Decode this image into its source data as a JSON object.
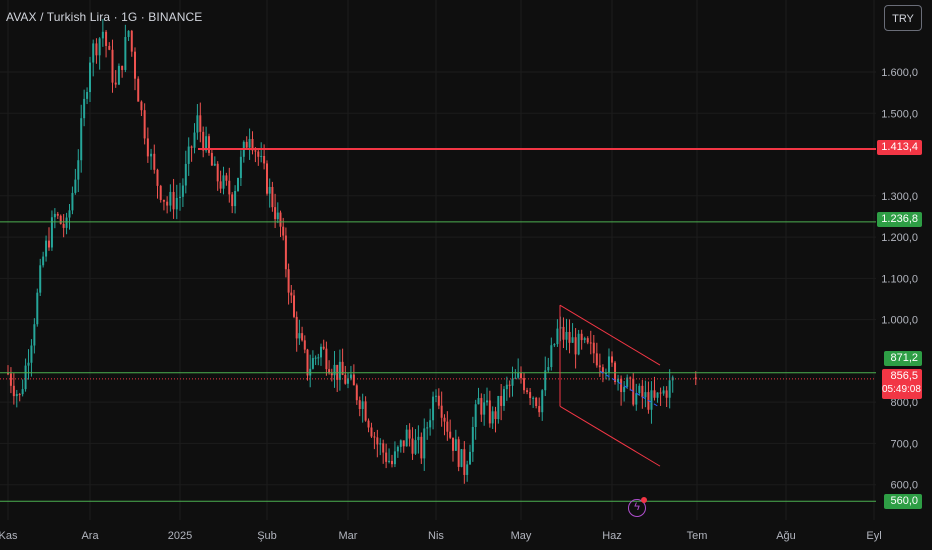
{
  "header": {
    "title": "AVAX / Turkish Lira · 1G · BINANCE",
    "currency_button": "TRY"
  },
  "colors": {
    "bull": "#26a69a",
    "bear": "#ef5350",
    "resistance_line": "#f23645",
    "support_line": "#4caf50",
    "grid": "#1c1c1c",
    "background": "#0f0f0f"
  },
  "tags": {
    "resistance": "1.413,4",
    "mid_support": "1.236,8",
    "last_close": "871,2",
    "current_price": "856,5",
    "countdown": "05:49:08",
    "bottom_support": "560,0"
  },
  "chart_data": {
    "type": "candlestick",
    "title": "AVAX / Turkish Lira · 1G · BINANCE",
    "y_axis_ticks": [
      {
        "value": 1600,
        "label": "1.600,0"
      },
      {
        "value": 1500,
        "label": "1.500,0"
      },
      {
        "value": 1300,
        "label": "1.300,0"
      },
      {
        "value": 1200,
        "label": "1.200,0"
      },
      {
        "value": 1100,
        "label": "1.100,0"
      },
      {
        "value": 1000,
        "label": "1.000,0"
      },
      {
        "value": 800,
        "label": "800,0"
      },
      {
        "value": 700,
        "label": "700,0"
      },
      {
        "value": 600,
        "label": "600,0"
      }
    ],
    "x_axis_ticks": [
      "Kas",
      "Ara",
      "2025",
      "Şub",
      "Mar",
      "Nis",
      "May",
      "Haz",
      "Tem",
      "Ağu",
      "Eyl"
    ],
    "horizontal_levels": [
      {
        "value": 1413.4,
        "color": "#f23645"
      },
      {
        "value": 1236.8,
        "color": "#4caf50"
      },
      {
        "value": 871.2,
        "color": "#4caf50"
      },
      {
        "value": 560.0,
        "color": "#4caf50"
      }
    ],
    "current_price": 856.5,
    "price_points": [
      [
        "Kas",
        870
      ],
      [
        "Kas",
        810
      ],
      [
        "Kas",
        960
      ],
      [
        "Kas",
        1150
      ],
      [
        "Kas",
        1250
      ],
      [
        "Kas",
        1220
      ],
      [
        "Kas",
        1400
      ],
      [
        "Ara",
        1640
      ],
      [
        "Ara",
        1700
      ],
      [
        "Ara",
        1560
      ],
      [
        "Ara",
        1700
      ],
      [
        "Ara",
        1500
      ],
      [
        "Ara",
        1350
      ],
      [
        "Ara",
        1280
      ],
      [
        "2025",
        1300
      ],
      [
        "2025",
        1480
      ],
      [
        "2025",
        1350
      ],
      [
        "2025",
        1300
      ],
      [
        "2025",
        1460
      ],
      [
        "Şub",
        1330
      ],
      [
        "Şub",
        1220
      ],
      [
        "Şub",
        1000
      ],
      [
        "Şub",
        880
      ],
      [
        "Şub",
        930
      ],
      [
        "Şub",
        880
      ],
      [
        "Mar",
        850
      ],
      [
        "Mar",
        800
      ],
      [
        "Mar",
        700
      ],
      [
        "Mar",
        650
      ],
      [
        "Mar",
        720
      ],
      [
        "Mar",
        680
      ],
      [
        "Nis",
        840
      ],
      [
        "Nis",
        720
      ],
      [
        "Nis",
        640
      ],
      [
        "Nis",
        800
      ],
      [
        "Nis",
        760
      ],
      [
        "Nis",
        830
      ],
      [
        "May",
        860
      ],
      [
        "May",
        800
      ],
      [
        "May",
        970
      ],
      [
        "May",
        940
      ],
      [
        "May",
        920
      ],
      [
        "Haz",
        880
      ],
      [
        "Haz",
        820
      ],
      [
        "Haz",
        800
      ],
      [
        "Haz",
        856.5
      ]
    ]
  }
}
